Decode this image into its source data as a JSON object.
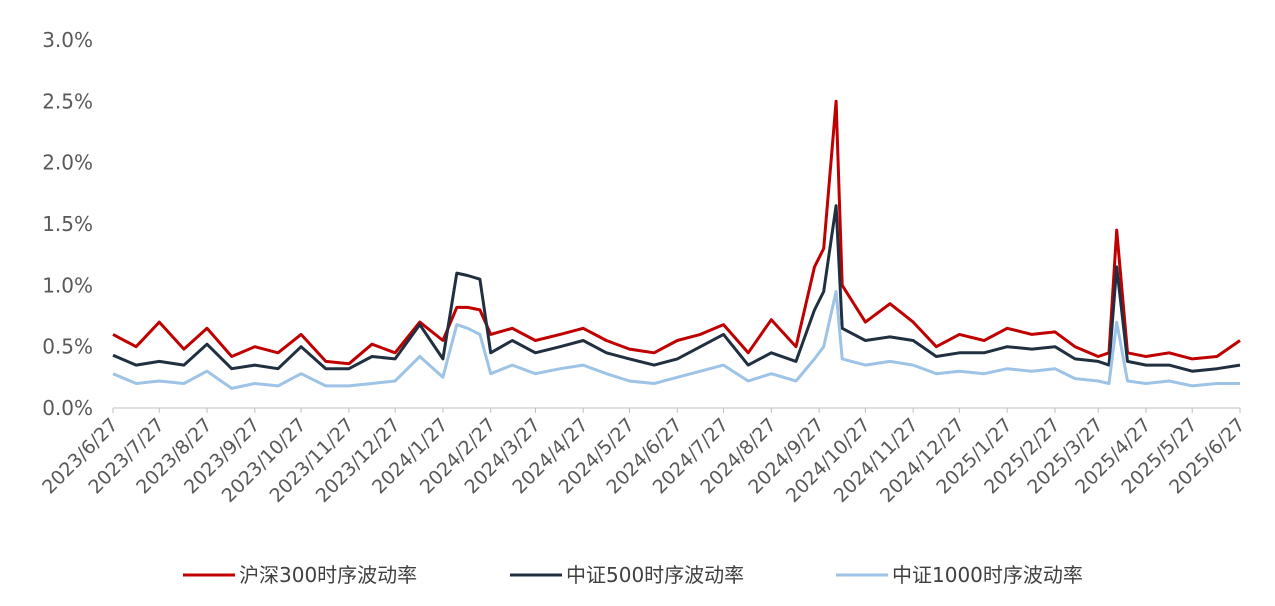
{
  "chart_data": {
    "type": "line",
    "title": "",
    "xlabel": "",
    "ylabel": "",
    "ylim": [
      0,
      3.0
    ],
    "y_tick_labels": [
      "0.0%",
      "0.5%",
      "1.0%",
      "1.5%",
      "2.0%",
      "2.5%",
      "3.0%"
    ],
    "y_tick_values": [
      0,
      0.5,
      1.0,
      1.5,
      2.0,
      2.5,
      3.0
    ],
    "x_tick_labels": [
      "2023/6/27",
      "2023/7/27",
      "2023/8/27",
      "2023/9/27",
      "2023/10/27",
      "2023/11/27",
      "2023/12/27",
      "2024/1/27",
      "2024/2/27",
      "2024/3/27",
      "2024/4/27",
      "2024/5/27",
      "2024/6/27",
      "2024/7/27",
      "2024/8/27",
      "2024/9/27",
      "2024/10/27",
      "2024/11/27",
      "2024/12/27",
      "2025/1/27",
      "2025/2/27",
      "2025/3/27",
      "2025/4/27",
      "2025/5/27",
      "2025/6/27"
    ],
    "x": [
      "2023/6/27",
      "2023/7/12",
      "2023/7/27",
      "2023/8/12",
      "2023/8/27",
      "2023/9/12",
      "2023/9/27",
      "2023/10/12",
      "2023/10/27",
      "2023/11/12",
      "2023/11/27",
      "2023/12/12",
      "2023/12/27",
      "2024/1/12",
      "2024/1/27",
      "2024/2/5",
      "2024/2/12",
      "2024/2/20",
      "2024/2/27",
      "2024/3/12",
      "2024/3/27",
      "2024/4/12",
      "2024/4/27",
      "2024/5/12",
      "2024/5/27",
      "2024/6/12",
      "2024/6/27",
      "2024/7/12",
      "2024/7/27",
      "2024/8/12",
      "2024/8/27",
      "2024/9/12",
      "2024/9/24",
      "2024/9/30",
      "2024/10/8",
      "2024/10/12",
      "2024/10/27",
      "2024/11/12",
      "2024/11/27",
      "2024/12/12",
      "2024/12/27",
      "2025/1/12",
      "2025/1/27",
      "2025/2/12",
      "2025/2/27",
      "2025/3/12",
      "2025/3/27",
      "2025/4/3",
      "2025/4/8",
      "2025/4/15",
      "2025/4/27",
      "2025/5/12",
      "2025/5/27",
      "2025/6/12",
      "2025/6/27"
    ],
    "series": [
      {
        "name": "沪深300时序波动率",
        "color": "#C00000",
        "values": [
          0.6,
          0.5,
          0.7,
          0.48,
          0.65,
          0.42,
          0.5,
          0.45,
          0.6,
          0.38,
          0.36,
          0.52,
          0.45,
          0.7,
          0.55,
          0.82,
          0.82,
          0.8,
          0.6,
          0.65,
          0.55,
          0.6,
          0.65,
          0.55,
          0.48,
          0.45,
          0.55,
          0.6,
          0.68,
          0.45,
          0.72,
          0.5,
          1.15,
          1.3,
          2.5,
          1.0,
          0.7,
          0.85,
          0.7,
          0.5,
          0.6,
          0.55,
          0.65,
          0.6,
          0.62,
          0.5,
          0.42,
          0.45,
          1.45,
          0.45,
          0.42,
          0.45,
          0.4,
          0.42,
          0.55
        ]
      },
      {
        "name": "中证500时序波动率",
        "color": "#203040",
        "values": [
          0.43,
          0.35,
          0.38,
          0.35,
          0.52,
          0.32,
          0.35,
          0.32,
          0.5,
          0.32,
          0.32,
          0.42,
          0.4,
          0.68,
          0.4,
          1.1,
          1.08,
          1.05,
          0.45,
          0.55,
          0.45,
          0.5,
          0.55,
          0.45,
          0.4,
          0.35,
          0.4,
          0.5,
          0.6,
          0.35,
          0.45,
          0.38,
          0.8,
          0.95,
          1.65,
          0.65,
          0.55,
          0.58,
          0.55,
          0.42,
          0.45,
          0.45,
          0.5,
          0.48,
          0.5,
          0.4,
          0.38,
          0.35,
          1.15,
          0.38,
          0.35,
          0.35,
          0.3,
          0.32,
          0.35
        ]
      },
      {
        "name": "中证1000时序波动率",
        "color": "#9DC3E6",
        "values": [
          0.28,
          0.2,
          0.22,
          0.2,
          0.3,
          0.16,
          0.2,
          0.18,
          0.28,
          0.18,
          0.18,
          0.2,
          0.22,
          0.42,
          0.25,
          0.68,
          0.65,
          0.6,
          0.28,
          0.35,
          0.28,
          0.32,
          0.35,
          0.28,
          0.22,
          0.2,
          0.25,
          0.3,
          0.35,
          0.22,
          0.28,
          0.22,
          0.4,
          0.5,
          0.95,
          0.4,
          0.35,
          0.38,
          0.35,
          0.28,
          0.3,
          0.28,
          0.32,
          0.3,
          0.32,
          0.24,
          0.22,
          0.2,
          0.7,
          0.22,
          0.2,
          0.22,
          0.18,
          0.2,
          0.2
        ]
      }
    ],
    "grid": false,
    "legend_position": "bottom"
  }
}
